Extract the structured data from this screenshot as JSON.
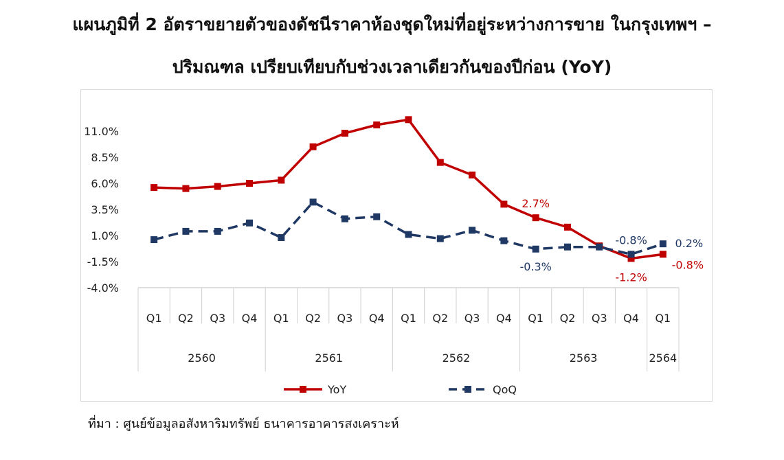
{
  "title": {
    "line1": "แผนภูมิที่ 2 อัตราขยายตัวของดัชนีราคาห้องชุดใหม่ที่อยู่ระหว่างการขาย ในกรุงเทพฯ –",
    "line2": "ปริมณฑล เปรียบเทียบกับช่วงเวลาเดียวกันของปีก่อน (YoY)"
  },
  "source": "ที่มา : ศูนย์ข้อมูลอสังหาริมทรัพย์ ธนาคารอาคารสงเคราะห์",
  "chart_data": {
    "type": "line",
    "categories": [
      "Q1",
      "Q2",
      "Q3",
      "Q4",
      "Q1",
      "Q2",
      "Q3",
      "Q4",
      "Q1",
      "Q2",
      "Q3",
      "Q4",
      "Q1",
      "Q2",
      "Q3",
      "Q4",
      "Q1"
    ],
    "year_groups": [
      {
        "label": "2560",
        "count": 4
      },
      {
        "label": "2561",
        "count": 4
      },
      {
        "label": "2562",
        "count": 4
      },
      {
        "label": "2563",
        "count": 4
      },
      {
        "label": "2564",
        "count": 1
      }
    ],
    "y_ticks": [
      "11.0%",
      "8.5%",
      "6.0%",
      "3.5%",
      "1.0%",
      "-1.5%",
      "-4.0%"
    ],
    "y_tick_values": [
      11.0,
      8.5,
      6.0,
      3.5,
      1.0,
      -1.5,
      -4.0
    ],
    "ylim": [
      -4.0,
      11.0
    ],
    "grid": false,
    "legend_position": "bottom",
    "series": [
      {
        "name": "YoY",
        "color": "#c00000",
        "style": "solid",
        "marker": "square",
        "values": [
          5.6,
          5.5,
          5.7,
          6.0,
          6.3,
          9.5,
          10.8,
          11.6,
          12.1,
          8.0,
          6.8,
          4.0,
          2.7,
          1.8,
          0.0,
          -1.2,
          -0.8
        ],
        "labels": [
          {
            "index": 12,
            "text": "2.7%"
          },
          {
            "index": 15,
            "text": "-1.2%"
          },
          {
            "index": 16,
            "text": "-0.8%"
          }
        ]
      },
      {
        "name": "QoQ",
        "color": "#1f3864",
        "style": "dashed",
        "marker": "square",
        "values": [
          0.6,
          1.4,
          1.4,
          2.2,
          0.8,
          4.2,
          2.6,
          2.8,
          1.1,
          0.7,
          1.5,
          0.5,
          -0.3,
          -0.1,
          -0.1,
          -0.8,
          0.2
        ],
        "labels": [
          {
            "index": 12,
            "text": "-0.3%"
          },
          {
            "index": 15,
            "text": "-0.8%"
          },
          {
            "index": 16,
            "text": "0.2%"
          }
        ]
      }
    ]
  }
}
